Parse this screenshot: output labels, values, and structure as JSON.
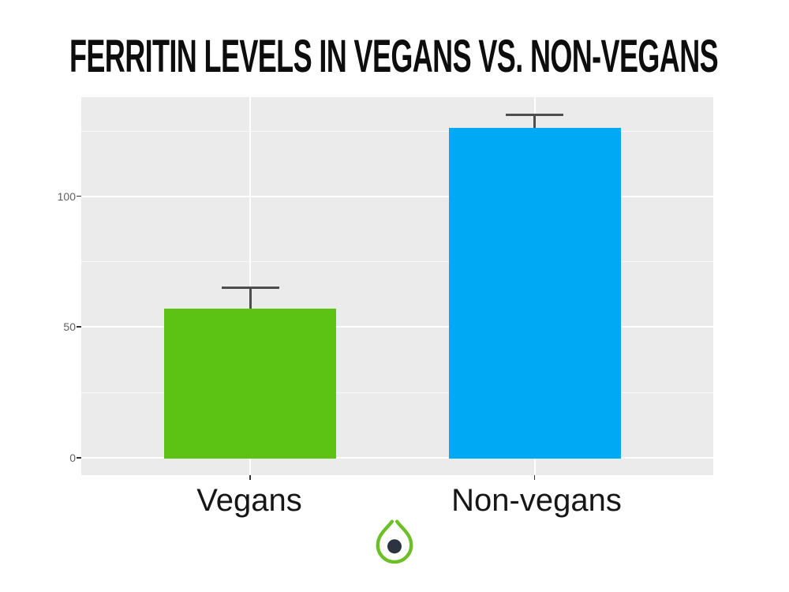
{
  "chart_data": {
    "type": "bar",
    "title": "FERRITIN LEVELS IN VEGANS VS. NON-VEGANS",
    "categories": [
      "Vegans",
      "Non-vegans"
    ],
    "values": [
      57,
      126
    ],
    "error_upper": [
      65,
      131
    ],
    "series": [
      {
        "name": "Vegans",
        "value": 57,
        "error_upper": 65,
        "color": "#5cc214"
      },
      {
        "name": "Non-vegans",
        "value": 126,
        "error_upper": 131,
        "color": "#00a9f4"
      }
    ],
    "bar_colors": [
      "#5cc214",
      "#00a9f4"
    ],
    "yticks": [
      0,
      50,
      100
    ],
    "ytick_labels": [
      "0",
      "50",
      "100"
    ],
    "minor_gridticks": [
      25,
      75,
      125
    ],
    "ylim": [
      0,
      138
    ],
    "xlabel": "",
    "ylabel": "",
    "grid": true,
    "legend": "none",
    "panel_background": "#ebebeb",
    "gridline_color": "#ffffff",
    "errorbar_color": "#4d4d4d",
    "title_color": "#0d0d0d",
    "axis_label_color": "#161616",
    "tick_label_color": "#606060"
  },
  "logo": {
    "name": "droplet-logo",
    "outline_color": "#6cbf26",
    "dot_color": "#2b3440"
  }
}
